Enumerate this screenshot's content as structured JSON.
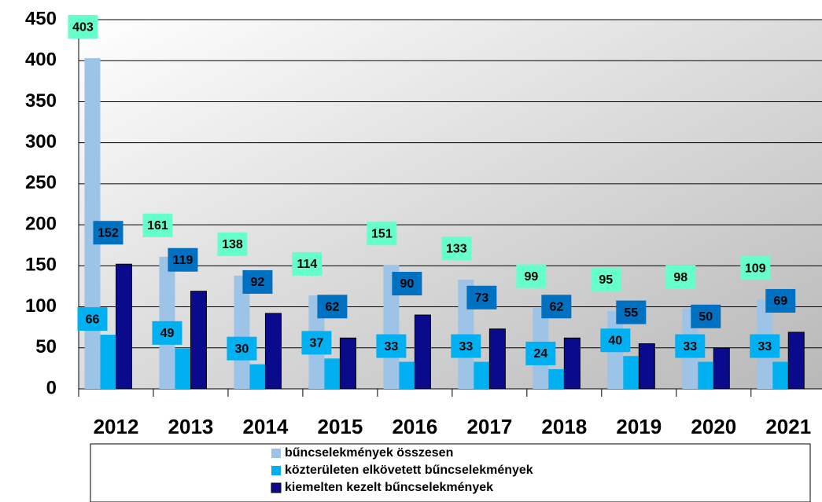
{
  "chart_data": {
    "type": "bar",
    "categories": [
      "2012",
      "2013",
      "2014",
      "2015",
      "2016",
      "2017",
      "2018",
      "2019",
      "2020",
      "2021"
    ],
    "series": [
      {
        "name": "bűncselekmények összesen",
        "color": "#9dc3e6",
        "label_color": "#66ffcc",
        "values": [
          403,
          161,
          138,
          114,
          151,
          133,
          99,
          95,
          98,
          109
        ]
      },
      {
        "name": "közterületen elkövetett bűncselekmények",
        "color": "#00b0f0",
        "label_color": "#00b0f0",
        "values": [
          66,
          49,
          30,
          37,
          33,
          33,
          24,
          40,
          33,
          33
        ]
      },
      {
        "name": "kiemelten kezelt bűncselekmények",
        "color": "#0a0a8c",
        "label_color": "#0070c0",
        "values": [
          152,
          119,
          92,
          62,
          90,
          73,
          62,
          55,
          50,
          69
        ]
      }
    ],
    "ylim": [
      0,
      450
    ],
    "yticks": [
      0,
      50,
      100,
      150,
      200,
      250,
      300,
      350,
      400,
      450
    ],
    "grid": true
  }
}
